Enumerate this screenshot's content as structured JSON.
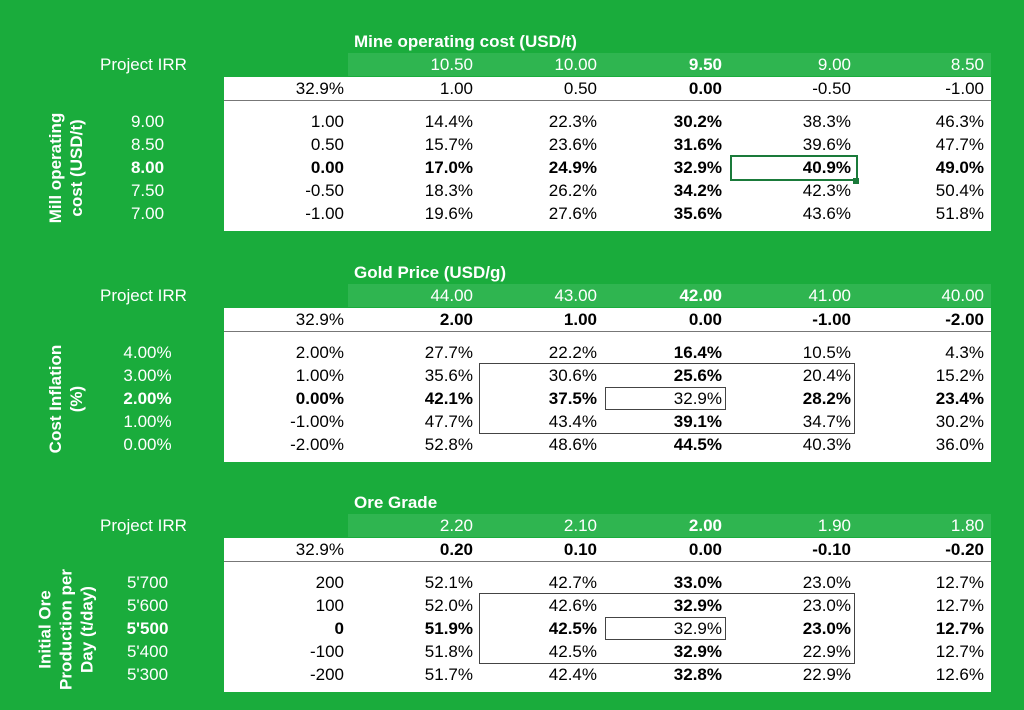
{
  "tables": [
    {
      "title": "Mine operating cost (USD/t)",
      "corner_label": "Project IRR",
      "row_title": "Mill operating cost (USD/t)",
      "row_title_lines": [
        "Mill operating",
        "cost (USD/t)"
      ],
      "col_headers": [
        "10.50",
        "10.00",
        "9.50",
        "9.00",
        "8.50"
      ],
      "base_value": "32.9%",
      "col_deltas": [
        "1.00",
        "0.50",
        "0.00",
        "-0.50",
        "-1.00"
      ],
      "rows": [
        {
          "label": "9.00",
          "delta": "1.00",
          "values": [
            "14.4%",
            "22.3%",
            "30.2%",
            "38.3%",
            "46.3%"
          ]
        },
        {
          "label": "8.50",
          "delta": "0.50",
          "values": [
            "15.7%",
            "23.6%",
            "31.6%",
            "39.6%",
            "47.7%"
          ]
        },
        {
          "label": "8.00",
          "delta": "0.00",
          "values": [
            "17.0%",
            "24.9%",
            "32.9%",
            "40.9%",
            "49.0%"
          ]
        },
        {
          "label": "7.50",
          "delta": "-0.50",
          "values": [
            "18.3%",
            "26.2%",
            "34.2%",
            "42.3%",
            "50.4%"
          ]
        },
        {
          "label": "7.00",
          "delta": "-1.00",
          "values": [
            "19.6%",
            "27.6%",
            "35.6%",
            "43.6%",
            "51.8%"
          ]
        }
      ]
    },
    {
      "title": "Gold Price (USD/g)",
      "corner_label": "Project IRR",
      "row_title": "Cost Inflation (%)",
      "row_title_lines": [
        "Cost Inflation",
        "(%)"
      ],
      "col_headers": [
        "44.00",
        "43.00",
        "42.00",
        "41.00",
        "40.00"
      ],
      "base_value": "32.9%",
      "col_deltas": [
        "2.00",
        "1.00",
        "0.00",
        "-1.00",
        "-2.00"
      ],
      "rows": [
        {
          "label": "4.00%",
          "delta": "2.00%",
          "values": [
            "27.7%",
            "22.2%",
            "16.4%",
            "10.5%",
            "4.3%"
          ]
        },
        {
          "label": "3.00%",
          "delta": "1.00%",
          "values": [
            "35.6%",
            "30.6%",
            "25.6%",
            "20.4%",
            "15.2%"
          ]
        },
        {
          "label": "2.00%",
          "delta": "0.00%",
          "values": [
            "42.1%",
            "37.5%",
            "32.9%",
            "28.2%",
            "23.4%"
          ]
        },
        {
          "label": "1.00%",
          "delta": "-1.00%",
          "values": [
            "47.7%",
            "43.4%",
            "39.1%",
            "34.7%",
            "30.2%"
          ]
        },
        {
          "label": "0.00%",
          "delta": "-2.00%",
          "values": [
            "52.8%",
            "48.6%",
            "44.5%",
            "40.3%",
            "36.0%"
          ]
        }
      ]
    },
    {
      "title": "Ore Grade",
      "corner_label": "Project IRR",
      "row_title": "Initial Ore Production per Day (t/day)",
      "row_title_lines": [
        "Initial Ore",
        "Production per",
        "Day (t/day)"
      ],
      "col_headers": [
        "2.20",
        "2.10",
        "2.00",
        "1.90",
        "1.80"
      ],
      "base_value": "32.9%",
      "col_deltas": [
        "0.20",
        "0.10",
        "0.00",
        "-0.10",
        "-0.20"
      ],
      "rows": [
        {
          "label": "5'700",
          "delta": "200",
          "values": [
            "52.1%",
            "42.7%",
            "33.0%",
            "23.0%",
            "12.7%"
          ]
        },
        {
          "label": "5'600",
          "delta": "100",
          "values": [
            "52.0%",
            "42.6%",
            "32.9%",
            "23.0%",
            "12.7%"
          ]
        },
        {
          "label": "5'500",
          "delta": "0",
          "values": [
            "51.9%",
            "42.5%",
            "32.9%",
            "23.0%",
            "12.7%"
          ]
        },
        {
          "label": "5'400",
          "delta": "-100",
          "values": [
            "51.8%",
            "42.5%",
            "32.9%",
            "22.9%",
            "12.7%"
          ]
        },
        {
          "label": "5'300",
          "delta": "-200",
          "values": [
            "51.7%",
            "42.4%",
            "32.8%",
            "22.9%",
            "12.6%"
          ]
        }
      ]
    }
  ],
  "colors": {
    "background": "#1aac3c",
    "header_band": "#2fb550",
    "selection": "#1a7a3a"
  }
}
